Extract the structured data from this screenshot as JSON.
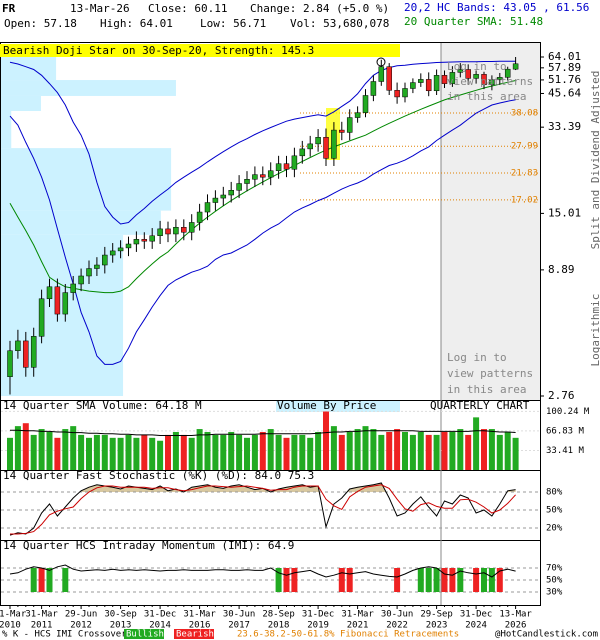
{
  "header": {
    "symbol": "FR",
    "date": "13-Mar-26",
    "close": "Close: 60.11",
    "change": "Change: 2.84 (+5.0 %)",
    "open": "Open: 57.18",
    "high": "High: 64.01",
    "low": "Low: 56.71",
    "volume": "Vol: 53,680,078",
    "bands": "20,2 HC Bands: 43.05 , 61.56",
    "bands_color": "#0000cc",
    "sma": "20 Quarter SMA: 51.48",
    "sma_color": "#008800",
    "pattern": "Bearish Doji Star on 30-Sep-20, Strength: 145.3"
  },
  "side_labels": [
    "Split and Dividend Adjusted",
    "Logarithmic"
  ],
  "login_notice": [
    "Log in to",
    "view patterns",
    "in this area"
  ],
  "footer": {
    "crossover": "% K - HCS IMI Crossover,",
    "bullish": "Bullish",
    "bearish": "Bearish",
    "fibonacci": "23.6-38.2-50-61.8% Fibonacci Retracements",
    "site": "@HotCandlestick.com"
  },
  "chart_data": [
    {
      "type": "candlestick",
      "log_scale": true,
      "ylim": [
        2.76,
        64.01
      ],
      "yticks": [
        64.01,
        57.89,
        51.76,
        45.64,
        33.39,
        15.01,
        8.89,
        2.76
      ],
      "categories": [
        {
          "date": "31-Mar",
          "year": "2010"
        },
        null,
        null,
        null,
        {
          "date": "31-Mar",
          "year": "2011"
        },
        null,
        null,
        null,
        null,
        {
          "date": "29-Jun",
          "year": "2012"
        },
        null,
        null,
        null,
        null,
        {
          "date": "30-Sep",
          "year": "2013"
        },
        null,
        null,
        null,
        null,
        {
          "date": "31-Dec",
          "year": "2014"
        },
        null,
        null,
        null,
        null,
        {
          "date": "31-Mar",
          "year": "2016"
        },
        null,
        null,
        null,
        null,
        {
          "date": "30-Jun",
          "year": "2017"
        },
        null,
        null,
        null,
        null,
        {
          "date": "28-Sep",
          "year": "2018"
        },
        null,
        null,
        null,
        null,
        {
          "date": "31-Dec",
          "year": "2019"
        },
        null,
        null,
        null,
        null,
        {
          "date": "31-Mar",
          "year": "2021"
        },
        null,
        null,
        null,
        null,
        {
          "date": "30-Jun",
          "year": "2022"
        },
        null,
        null,
        null,
        null,
        {
          "date": "29-Sep",
          "year": "2023"
        },
        null,
        null,
        null,
        null,
        {
          "date": "31-Dec",
          "year": "2024"
        },
        null,
        null,
        null,
        null,
        {
          "date": "13-Mar",
          "year": "2026"
        }
      ],
      "open": [
        3.3,
        4.2,
        4.6,
        3.6,
        4.8,
        6.8,
        7.6,
        5.9,
        7.2,
        7.8,
        8.4,
        9.0,
        9.3,
        10.2,
        10.6,
        10.9,
        11.3,
        11.8,
        11.6,
        12.2,
        13.0,
        12.4,
        13.2,
        12.6,
        13.8,
        15.2,
        16.6,
        17.3,
        17.8,
        18.6,
        19.8,
        20.6,
        21.5,
        21.0,
        22.3,
        23.8,
        22.6,
        25.6,
        27.3,
        28.6,
        30.4,
        25.0,
        32.5,
        31.8,
        36.5,
        38.2,
        44.8,
        51.0,
        58.5,
        47.0,
        44.2,
        47.8,
        50.5,
        52.0,
        46.8,
        54.0,
        50.0,
        55.5,
        57.0,
        52.5,
        54.5,
        49.5,
        51.8,
        53.0,
        57.18
      ],
      "high": [
        4.6,
        5.1,
        5.0,
        5.2,
        7.4,
        8.2,
        8.2,
        7.8,
        8.4,
        9.0,
        9.7,
        10.0,
        11.0,
        11.4,
        11.7,
        12.1,
        12.7,
        12.6,
        13.1,
        14.0,
        13.9,
        14.2,
        14.2,
        14.9,
        16.4,
        17.9,
        18.6,
        19.2,
        20.1,
        21.4,
        22.2,
        23.2,
        23.2,
        24.1,
        25.6,
        25.6,
        27.6,
        29.4,
        30.8,
        32.8,
        33.0,
        35.0,
        35.1,
        39.4,
        40.5,
        47.5,
        54.0,
        62.4,
        60.5,
        50.5,
        50.5,
        52.5,
        55.0,
        55.5,
        57.0,
        56.5,
        58.8,
        60.5,
        59.8,
        56.5,
        55.8,
        54.0,
        55.2,
        58.5,
        64.01
      ],
      "low": [
        2.8,
        3.9,
        3.3,
        3.3,
        4.5,
        6.3,
        5.5,
        5.5,
        6.7,
        7.3,
        7.8,
        8.4,
        8.6,
        9.5,
        9.9,
        10.1,
        10.5,
        10.8,
        10.8,
        11.3,
        11.5,
        11.5,
        11.7,
        11.7,
        12.8,
        14.1,
        15.4,
        16.1,
        16.6,
        17.3,
        18.4,
        19.2,
        19.5,
        19.5,
        20.7,
        21.0,
        21.0,
        23.8,
        25.4,
        26.6,
        23.3,
        23.3,
        29.6,
        29.6,
        34.8,
        36.6,
        42.5,
        49.0,
        45.0,
        41.5,
        42.0,
        45.8,
        48.5,
        44.5,
        45.0,
        48.0,
        48.5,
        53.0,
        49.5,
        50.0,
        47.5,
        47.0,
        49.5,
        51.5,
        56.71
      ],
      "close": [
        4.2,
        4.6,
        3.6,
        4.8,
        6.8,
        7.6,
        5.9,
        7.2,
        7.8,
        8.4,
        9.0,
        9.3,
        10.2,
        10.6,
        10.9,
        11.3,
        11.8,
        11.6,
        12.2,
        13.0,
        12.4,
        13.2,
        12.6,
        13.8,
        15.2,
        16.6,
        17.3,
        17.8,
        18.6,
        19.8,
        20.6,
        21.5,
        21.0,
        22.3,
        23.8,
        22.6,
        25.6,
        27.3,
        28.6,
        30.4,
        25.0,
        32.5,
        31.8,
        36.5,
        38.2,
        44.8,
        51.0,
        58.5,
        47.0,
        44.2,
        47.8,
        50.5,
        52.0,
        46.8,
        54.0,
        50.0,
        55.5,
        57.0,
        52.5,
        54.5,
        49.5,
        51.8,
        53.0,
        57.18,
        60.11
      ],
      "up_color": "#22aa22",
      "down_color": "#ee2222",
      "overlays": [
        {
          "color": "#0000cc",
          "values": [
            61,
            60,
            58.5,
            57,
            54,
            50,
            46,
            41,
            35,
            31,
            26,
            20,
            16,
            14.5,
            13.6,
            13.8,
            14.8,
            15.7,
            16.8,
            17.8,
            18.8,
            20,
            21,
            22,
            23,
            24.2,
            25.4,
            26.6,
            27.8,
            29,
            30,
            31.2,
            32.3,
            33.3,
            34.3,
            35.3,
            36,
            36.5,
            37,
            37.5,
            37,
            38.5,
            40.5,
            42.5,
            45.5,
            50,
            54,
            56.5,
            58,
            59,
            59.3,
            59.8,
            60.2,
            60.5,
            60.8,
            61,
            61.1,
            61.2,
            61.3,
            61.3,
            61.4,
            61.4,
            61.5,
            61.5,
            61.56
          ]
        },
        {
          "color": "#0000cc",
          "values": [
            37,
            34,
            29,
            25,
            21,
            17,
            13,
            10,
            7.8,
            6.0,
            5.0,
            4.0,
            3.7,
            3.7,
            3.8,
            4.3,
            5.0,
            5.6,
            6.3,
            7.0,
            7.7,
            8.1,
            8.4,
            8.7,
            8.9,
            9.2,
            9.8,
            10.2,
            10.4,
            10.8,
            11.2,
            11.8,
            12.5,
            13.1,
            13.6,
            14.4,
            15.2,
            15.8,
            16.3,
            16.9,
            17.4,
            18.1,
            18.8,
            19.4,
            19.9,
            20.6,
            21.6,
            22.5,
            23.4,
            23.9,
            24.6,
            25.6,
            26.8,
            27.8,
            29.5,
            31,
            32.5,
            34,
            36,
            38,
            39.5,
            41,
            41.8,
            42.5,
            43.05
          ]
        },
        {
          "color": "#008800",
          "values": [
            16.5,
            14.5,
            12.8,
            11.2,
            9.6,
            8.3,
            7.9,
            7.6,
            7.5,
            7.4,
            7.3,
            7.25,
            7.2,
            7.2,
            7.3,
            7.6,
            8.2,
            8.8,
            9.4,
            10.0,
            10.5,
            11.3,
            12.1,
            12.9,
            13.7,
            14.5,
            15.3,
            16.1,
            16.9,
            17.7,
            18.5,
            19.3,
            20.1,
            20.9,
            21.7,
            22.5,
            23.4,
            24.3,
            25.2,
            26.1,
            27,
            27.8,
            28.6,
            29.4,
            30.2,
            31,
            32.2,
            33.4,
            34.6,
            35.8,
            37,
            38.2,
            39.4,
            40.6,
            41.8,
            43,
            44,
            45,
            46,
            47,
            48,
            48.9,
            49.8,
            50.6,
            51.48
          ]
        }
      ],
      "fibonacci": {
        "color": "#e08000",
        "levels": [
          38.08,
          27.99,
          21.83,
          17.02
        ]
      },
      "volume_by_price": {
        "color": "#ccf2ff",
        "bins": [
          2.76,
          12.3,
          15.4,
          27.5,
          38.8,
          44.6,
          51.7,
          64.01
        ],
        "values": [
          22.6,
          29.6,
          31.5,
          1.9,
          7.4,
          32.4,
          10.2
        ],
        "xlim": [
          0,
          100
        ]
      }
    },
    {
      "type": "volume",
      "title": "14 Quarter SMA Volume: 64.18 M",
      "subtitle": "Volume By Price",
      "chart_label": "QUARTERLY CHART",
      "ylim": [
        0,
        106
      ],
      "yticks": [
        {
          "value": 100.24,
          "label": "100.24 M"
        },
        {
          "value": 66.83,
          "label": "66.83 M"
        },
        {
          "value": 33.41,
          "label": "33.41 M"
        }
      ],
      "values": [
        55,
        75,
        80,
        60,
        70,
        65,
        55,
        70,
        75,
        60,
        55,
        60,
        60,
        55,
        55,
        60,
        55,
        60,
        55,
        50,
        60,
        65,
        60,
        55,
        70,
        65,
        60,
        60,
        65,
        60,
        55,
        60,
        65,
        70,
        60,
        55,
        60,
        60,
        55,
        65,
        100,
        75,
        60,
        65,
        70,
        75,
        70,
        60,
        65,
        70,
        65,
        60,
        65,
        60,
        60,
        65,
        65,
        70,
        60,
        90,
        70,
        70,
        60,
        65,
        55
      ],
      "sma": {
        "color": "#000000",
        "values": [
          68,
          68,
          67,
          67,
          66,
          66,
          65,
          65,
          64,
          64,
          63,
          63,
          62,
          62,
          61,
          61,
          60,
          60,
          60,
          59,
          59,
          59,
          59,
          59,
          60,
          60,
          61,
          61,
          61,
          61,
          61,
          61,
          62,
          62,
          62,
          62,
          62,
          62,
          62,
          63,
          64,
          65,
          65,
          66,
          66,
          67,
          67,
          67,
          67,
          67,
          67,
          67,
          66,
          66,
          66,
          66,
          66,
          66,
          66,
          67,
          67,
          66,
          65,
          65,
          64.18
        ]
      }
    },
    {
      "type": "stochastic",
      "title": "14 Quarter Fast Stochastic (%K) (%D): 84.0 75.3",
      "ylim": [
        0,
        100
      ],
      "yticks": [
        {
          "value": 80,
          "label": "80%"
        },
        {
          "value": 50,
          "label": "50%"
        },
        {
          "value": 20,
          "label": "20%"
        }
      ],
      "series": [
        {
          "color": "#000000",
          "values": [
            8,
            12,
            10,
            20,
            45,
            60,
            40,
            55,
            70,
            82,
            88,
            92,
            90,
            88,
            85,
            90,
            88,
            86,
            84,
            90,
            82,
            85,
            80,
            88,
            90,
            92,
            88,
            86,
            90,
            92,
            88,
            84,
            86,
            80,
            85,
            88,
            90,
            92,
            88,
            90,
            22,
            60,
            70,
            85,
            88,
            90,
            92,
            95,
            70,
            40,
            45,
            60,
            72,
            55,
            40,
            65,
            60,
            75,
            70,
            45,
            50,
            40,
            60,
            82,
            84.0
          ]
        },
        {
          "color": "#cc0000",
          "values": [
            10,
            10,
            11,
            14,
            26,
            42,
            48,
            52,
            55,
            69,
            80,
            87,
            90,
            90,
            88,
            88,
            88,
            88,
            86,
            87,
            87,
            84,
            82,
            84,
            87,
            90,
            90,
            89,
            88,
            89,
            90,
            88,
            86,
            83,
            84,
            84,
            88,
            90,
            90,
            90,
            68,
            57,
            51,
            72,
            81,
            88,
            90,
            92,
            86,
            68,
            52,
            48,
            59,
            62,
            56,
            53,
            53,
            67,
            68,
            63,
            55,
            45,
            50,
            61,
            75.3
          ]
        }
      ],
      "fill_color": "#d8c8a0"
    },
    {
      "type": "momentum",
      "title": "14 Quarter HCS Intraday Momentum (IMI): 64.9",
      "ylim": [
        0,
        100
      ],
      "yticks": [
        {
          "value": 70,
          "label": "70%"
        },
        {
          "value": 50,
          "label": "50%"
        },
        {
          "value": 30,
          "label": "30%"
        }
      ],
      "values": [
        60,
        62,
        68,
        72,
        70,
        66,
        72,
        75,
        68,
        65,
        66,
        67,
        66,
        68,
        66,
        67,
        66,
        67,
        66,
        65,
        66,
        66,
        67,
        66,
        66,
        66,
        67,
        67,
        66,
        66,
        67,
        66,
        66,
        70,
        62,
        58,
        62,
        64,
        66,
        60,
        55,
        58,
        62,
        60,
        62,
        64,
        60,
        58,
        56,
        55,
        60,
        66,
        70,
        72,
        70,
        60,
        58,
        65,
        62,
        60,
        62,
        55,
        65,
        68,
        64.9
      ],
      "color": "#000000",
      "signal_colors": [
        null,
        null,
        null,
        "#22aa22",
        "#ee2222",
        "#22aa22",
        null,
        "#22aa22",
        null,
        null,
        null,
        null,
        null,
        null,
        null,
        null,
        null,
        null,
        null,
        null,
        null,
        null,
        null,
        null,
        null,
        null,
        null,
        null,
        null,
        null,
        null,
        null,
        null,
        null,
        "#22aa22",
        "#ee2222",
        "#ee2222",
        null,
        null,
        null,
        null,
        null,
        "#ee2222",
        "#ee2222",
        null,
        null,
        null,
        null,
        null,
        "#ee2222",
        null,
        null,
        "#22aa22",
        "#22aa22",
        "#22aa22",
        "#ee2222",
        "#ee2222",
        "#22aa22",
        null,
        "#ee2222",
        "#22aa22",
        "#22aa22",
        "#ee2222",
        null,
        null
      ]
    }
  ]
}
